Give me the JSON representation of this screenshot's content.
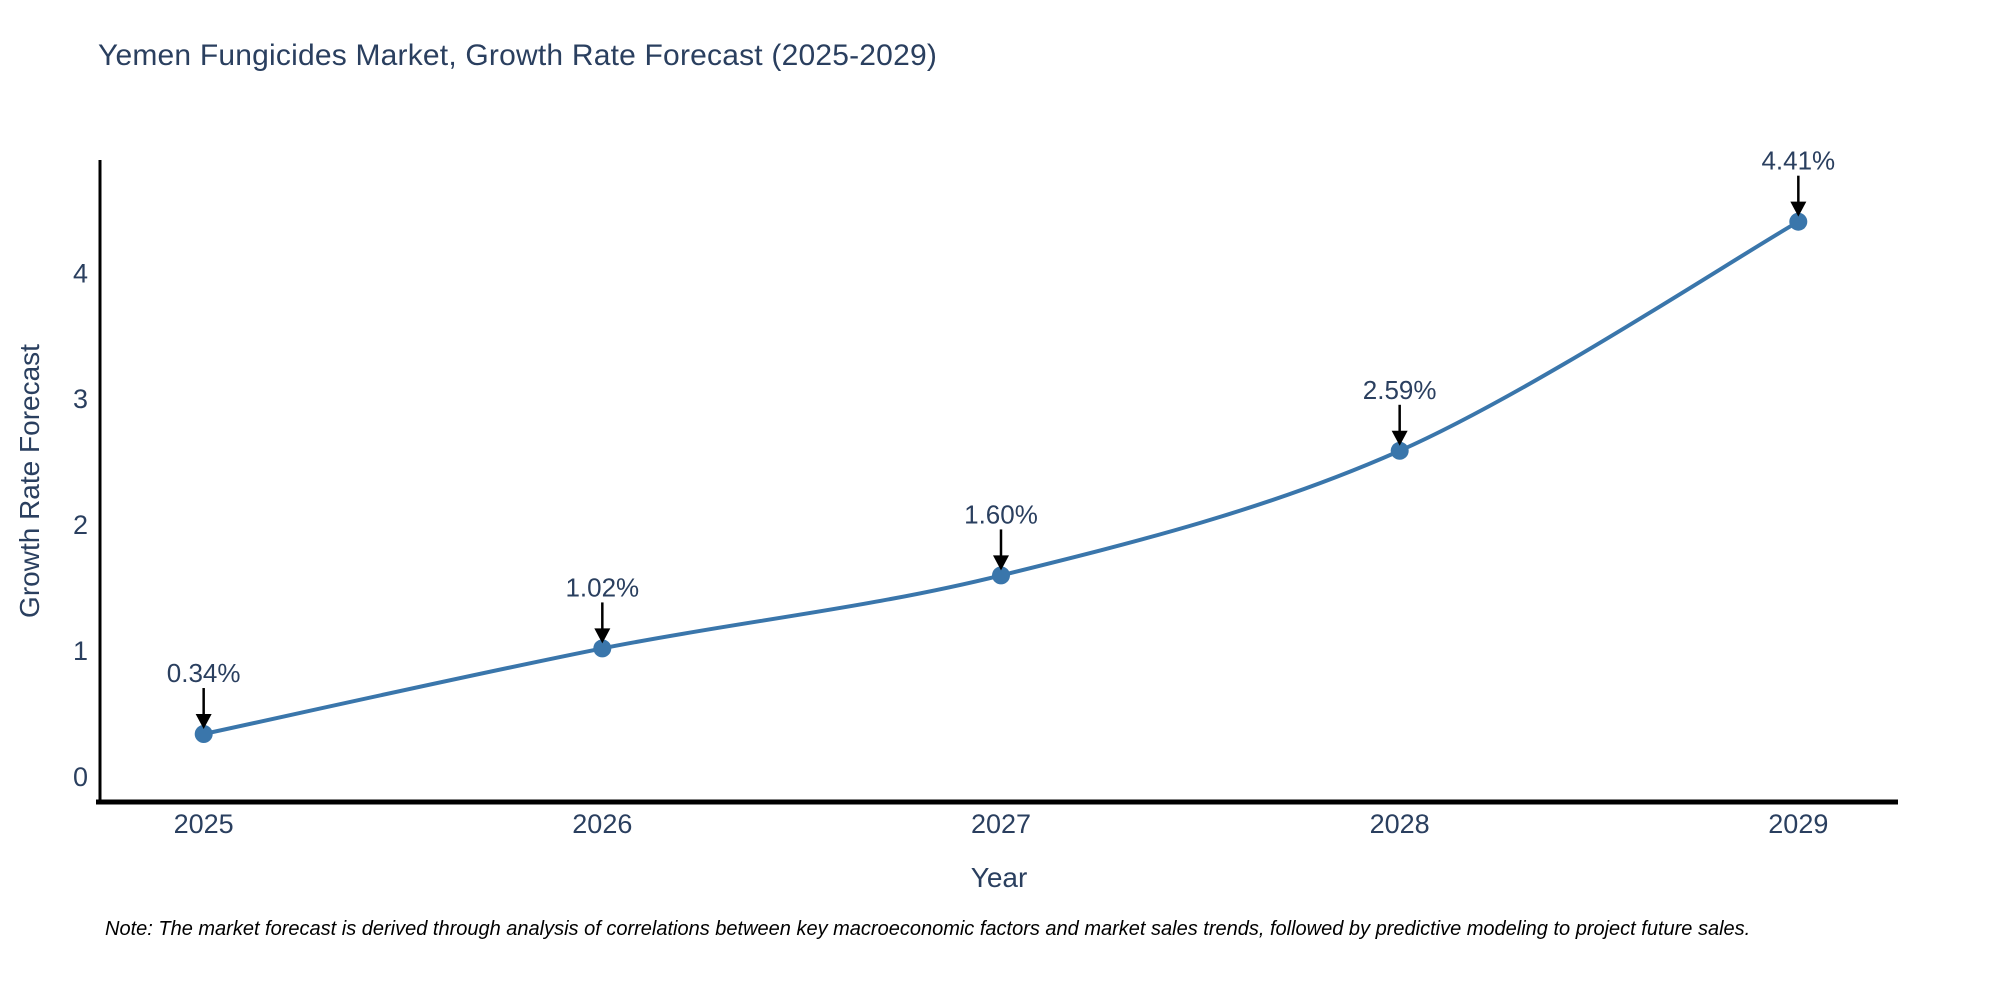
{
  "figure": {
    "note": "Note: The market forecast is derived through analysis of correlations between key macroeconomic factors and market sales trends, followed by predictive modeling to project future sales."
  },
  "chart_data": {
    "type": "line",
    "title": "Yemen Fungicides Market, Growth Rate Forecast (2025-2029)",
    "xlabel": "Year",
    "ylabel": "Growth Rate Forecast",
    "x": [
      2025,
      2026,
      2027,
      2028,
      2029
    ],
    "xtick_labels": [
      "2025",
      "2026",
      "2027",
      "2028",
      "2029"
    ],
    "ytick_values": [
      0,
      1,
      2,
      3,
      4
    ],
    "series": [
      {
        "name": "Growth Rate Forecast",
        "values": [
          0.34,
          1.02,
          1.6,
          2.59,
          4.41
        ]
      }
    ],
    "point_labels": [
      "0.34%",
      "1.02%",
      "1.60%",
      "2.59%",
      "4.41%"
    ],
    "xlim": [
      2024.74,
      2029.25
    ],
    "ylim": [
      -0.2,
      4.9
    ],
    "grid": false,
    "legend": "none",
    "line_shape": "spline",
    "colors": {
      "line": "#3a76ab",
      "marker": "#3a76ab",
      "axis": "#000000",
      "text": "#2a3f5f",
      "annotation_arrow": "#000000",
      "note_text": "#000000",
      "background": "#ffffff"
    }
  }
}
